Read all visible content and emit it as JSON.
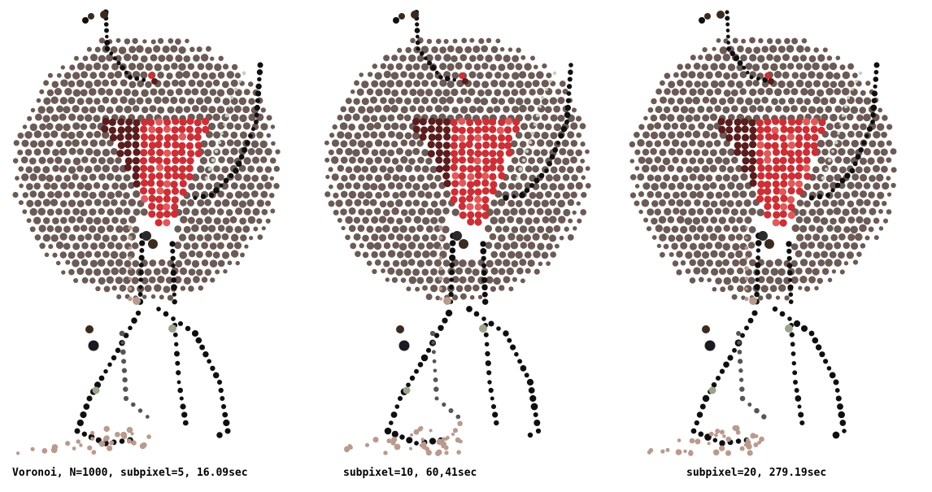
{
  "panels": [
    {
      "caption": "Voronoi, N=1000, subpixel=5, 16.09sec"
    },
    {
      "caption": "subpixel=10, 60,41sec"
    },
    {
      "caption": "subpixel=20, 279.19sec"
    }
  ],
  "colors": {
    "background_disc": "#6b5a55",
    "heart_red": "#cc2f35",
    "heart_dark": "#5a1d1d",
    "outline_black": "#0f0f0f",
    "skin_tan": "#b99a8e",
    "pale_green": "#c8cfc0"
  }
}
